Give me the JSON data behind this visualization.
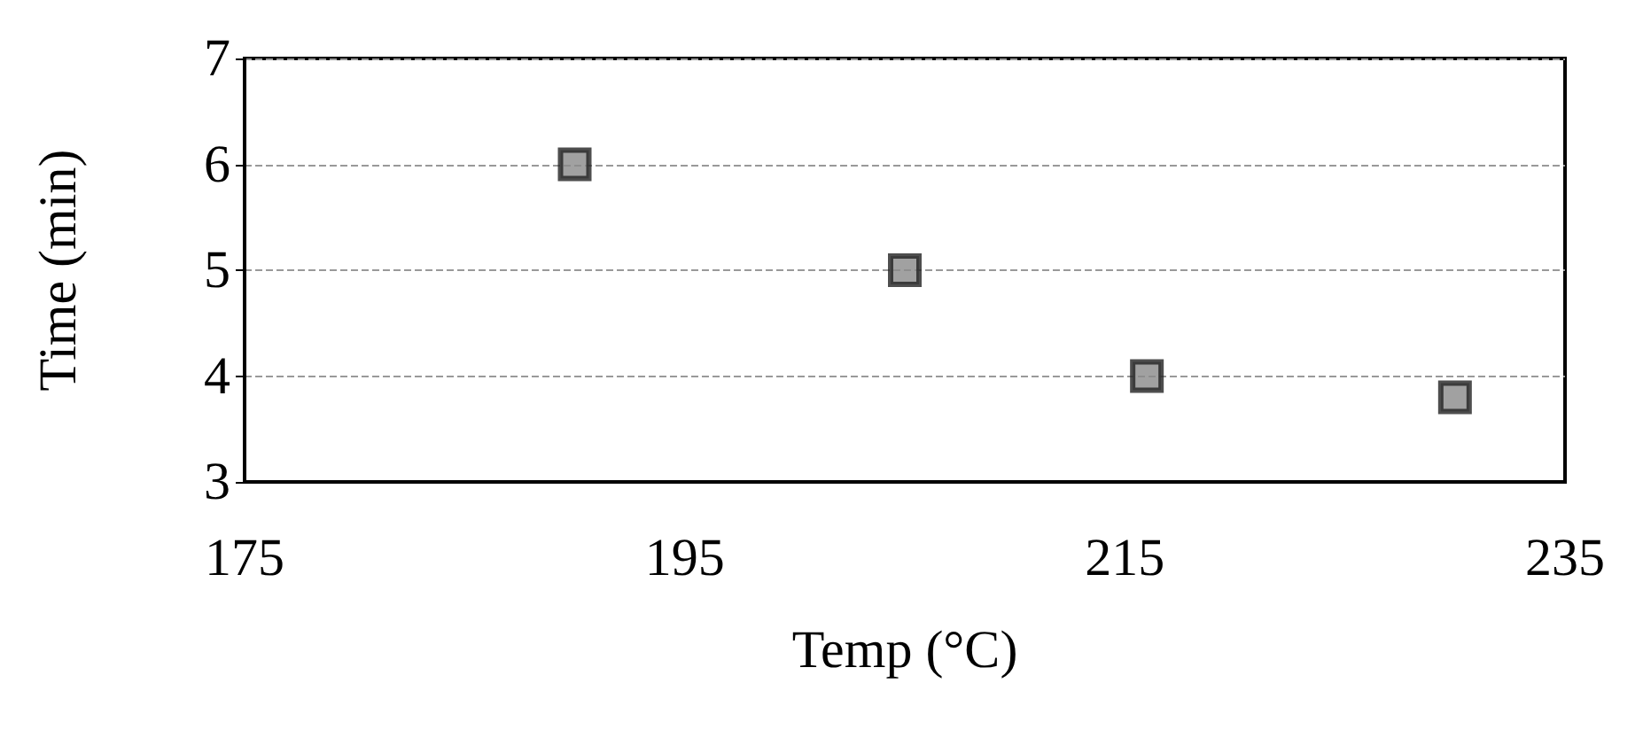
{
  "chart_data": {
    "type": "scatter",
    "xlabel": "Temp (°C)",
    "ylabel": "Time (min)",
    "x": [
      190,
      205,
      216,
      230
    ],
    "values": [
      6.0,
      5.0,
      4.0,
      3.8
    ],
    "color": "#8a8a8a",
    "marker": "square",
    "xlim": [
      175,
      235
    ],
    "xticks": [
      175,
      195,
      215,
      235
    ],
    "ylim": [
      3,
      7
    ],
    "yticks": [
      3,
      4,
      5,
      6,
      7
    ],
    "grid": "y"
  }
}
